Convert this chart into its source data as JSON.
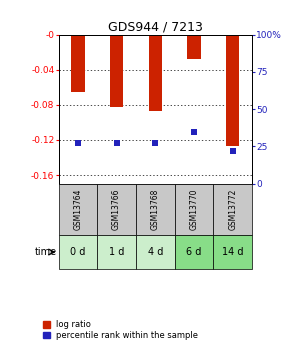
{
  "title": "GDS944 / 7213",
  "samples": [
    "GSM13764",
    "GSM13766",
    "GSM13768",
    "GSM13770",
    "GSM13772"
  ],
  "time_labels": [
    "0 d",
    "1 d",
    "4 d",
    "6 d",
    "14 d"
  ],
  "log_ratios": [
    -0.065,
    -0.083,
    -0.087,
    -0.028,
    -0.127
  ],
  "percentile_ranks": [
    27,
    27,
    27,
    35,
    22
  ],
  "ylim_left": [
    -0.17,
    0.0
  ],
  "ylim_right": [
    0,
    100
  ],
  "left_ticks": [
    0.0,
    -0.04,
    -0.08,
    -0.12,
    -0.16
  ],
  "left_tick_labels": [
    "-0",
    "-0.04",
    "-0.08",
    "-0.12",
    "-0.16"
  ],
  "right_ticks": [
    0,
    25,
    50,
    75,
    100
  ],
  "right_tick_labels": [
    "0",
    "25",
    "50",
    "75",
    "100%"
  ],
  "bar_color": "#cc2200",
  "percentile_color": "#2222bb",
  "sample_bg_color": "#c8c8c8",
  "time_bg_colors": [
    "#cceecc",
    "#cceecc",
    "#cceecc",
    "#88dd88",
    "#88dd88"
  ],
  "bar_width": 0.35,
  "legend_log_ratio": "log ratio",
  "legend_percentile": "percentile rank within the sample",
  "figwidth": 2.93,
  "figheight": 3.45,
  "dpi": 100
}
